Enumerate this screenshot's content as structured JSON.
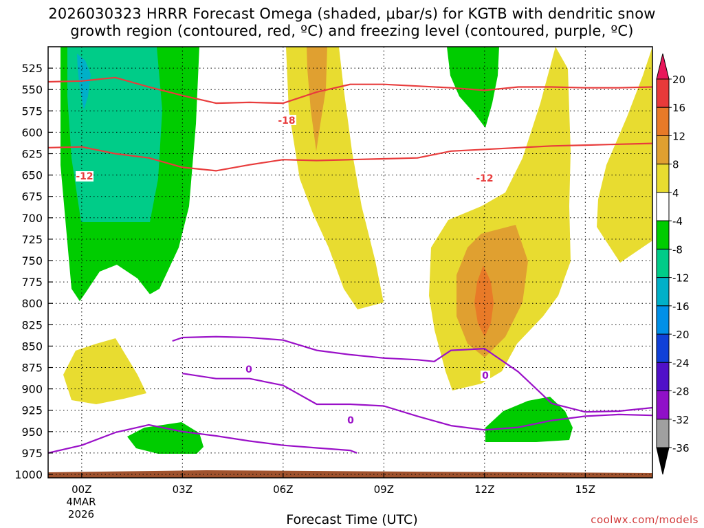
{
  "chart_data": {
    "type": "heatmap",
    "title_line1": "2026030323 HRRR Forecast Omega (shaded, μbar/s) for KGTB with dendritic snow",
    "title_line2": "growth region (contoured, red, ºC) and freezing level (contoured, purple, ºC)",
    "xlabel": "Forecast Time (UTC)",
    "ylabel": "",
    "x_ticks": [
      "00Z",
      "03Z",
      "06Z",
      "09Z",
      "12Z",
      "15Z"
    ],
    "x_tick_hours": [
      1,
      4,
      7,
      10,
      13,
      16
    ],
    "x_date_lines": [
      "4MAR",
      "2026"
    ],
    "xlim_hours": [
      0,
      18
    ],
    "y_ticks": [
      525,
      550,
      575,
      600,
      625,
      650,
      675,
      700,
      725,
      750,
      775,
      800,
      825,
      850,
      875,
      900,
      925,
      950,
      975,
      1000
    ],
    "ylim_hpa": [
      1004,
      500
    ],
    "colorbar": {
      "labels": [
        "20",
        "16",
        "12",
        "8",
        "4",
        "-4",
        "-8",
        "-12",
        "-16",
        "-20",
        "-24",
        "-28",
        "-32",
        "-36"
      ],
      "levels": [
        20,
        16,
        12,
        8,
        4,
        -4,
        -8,
        -12,
        -16,
        -20,
        -24,
        -28,
        -32,
        -36
      ],
      "colors": [
        "#e8175a",
        "#e83a3a",
        "#e87a28",
        "#e0a030",
        "#e8dc30",
        "#ffffff",
        "#00cc00",
        "#00cc88",
        "#00b0c8",
        "#0090e8",
        "#1040d8",
        "#5010c8",
        "#9010c8",
        "#a0a0a0",
        "#000000"
      ]
    },
    "contour_labels": {
      "dgz_upper": "-18",
      "dgz_lower_left": "-12",
      "dgz_lower_right": "-12",
      "freezing_a": "0",
      "freezing_b": "0",
      "freezing_c": "0"
    },
    "series": [
      {
        "name": "DGZ -18C",
        "color": "#e83c3c",
        "hours": [
          0,
          1,
          2,
          3,
          4,
          5,
          6,
          7,
          8,
          9,
          10,
          11,
          12,
          13,
          14,
          15,
          16,
          17,
          18
        ],
        "pressure": [
          541,
          540,
          536,
          547,
          557,
          566,
          565,
          566,
          553,
          544,
          544,
          546,
          548,
          551,
          547,
          547,
          548,
          548,
          547
        ]
      },
      {
        "name": "DGZ -12C",
        "color": "#e83c3c",
        "hours": [
          0,
          1,
          2,
          3,
          4,
          5,
          6,
          7,
          8,
          9,
          10,
          11,
          12,
          13,
          14,
          15,
          16,
          17,
          18
        ],
        "pressure": [
          618,
          617,
          625,
          630,
          641,
          645,
          638,
          632,
          633,
          632,
          631,
          630,
          622,
          620,
          618,
          616,
          615,
          614,
          613
        ]
      },
      {
        "name": "Freezing level 0C",
        "color": "#9a10c8",
        "hours": [
          3.7,
          4,
          5,
          6,
          7,
          8,
          9,
          10,
          11,
          11.5,
          12,
          13,
          14,
          15,
          16,
          17,
          18
        ],
        "pressure": [
          844,
          840,
          839,
          840,
          843,
          855,
          860,
          864,
          866,
          868,
          855,
          853,
          880,
          917,
          927,
          926,
          922
        ]
      },
      {
        "name": "Freezing level 0C (lower)",
        "color": "#9a10c8",
        "hours": [
          4,
          5,
          6,
          7,
          8,
          9,
          10,
          11,
          12,
          13,
          14,
          15,
          16,
          17,
          18
        ],
        "pressure": [
          882,
          888,
          888,
          896,
          918,
          918,
          920,
          932,
          943,
          948,
          945,
          937,
          932,
          930,
          931
        ]
      },
      {
        "name": "Freezing level 0C (surface)",
        "color": "#9a10c8",
        "hours": [
          0,
          1,
          2,
          3,
          4,
          5,
          6,
          7,
          8,
          9,
          9.2
        ],
        "pressure": [
          975,
          966,
          951,
          942,
          950,
          955,
          961,
          966,
          969,
          972,
          975
        ]
      }
    ]
  },
  "credit": "coolwx.com/models"
}
